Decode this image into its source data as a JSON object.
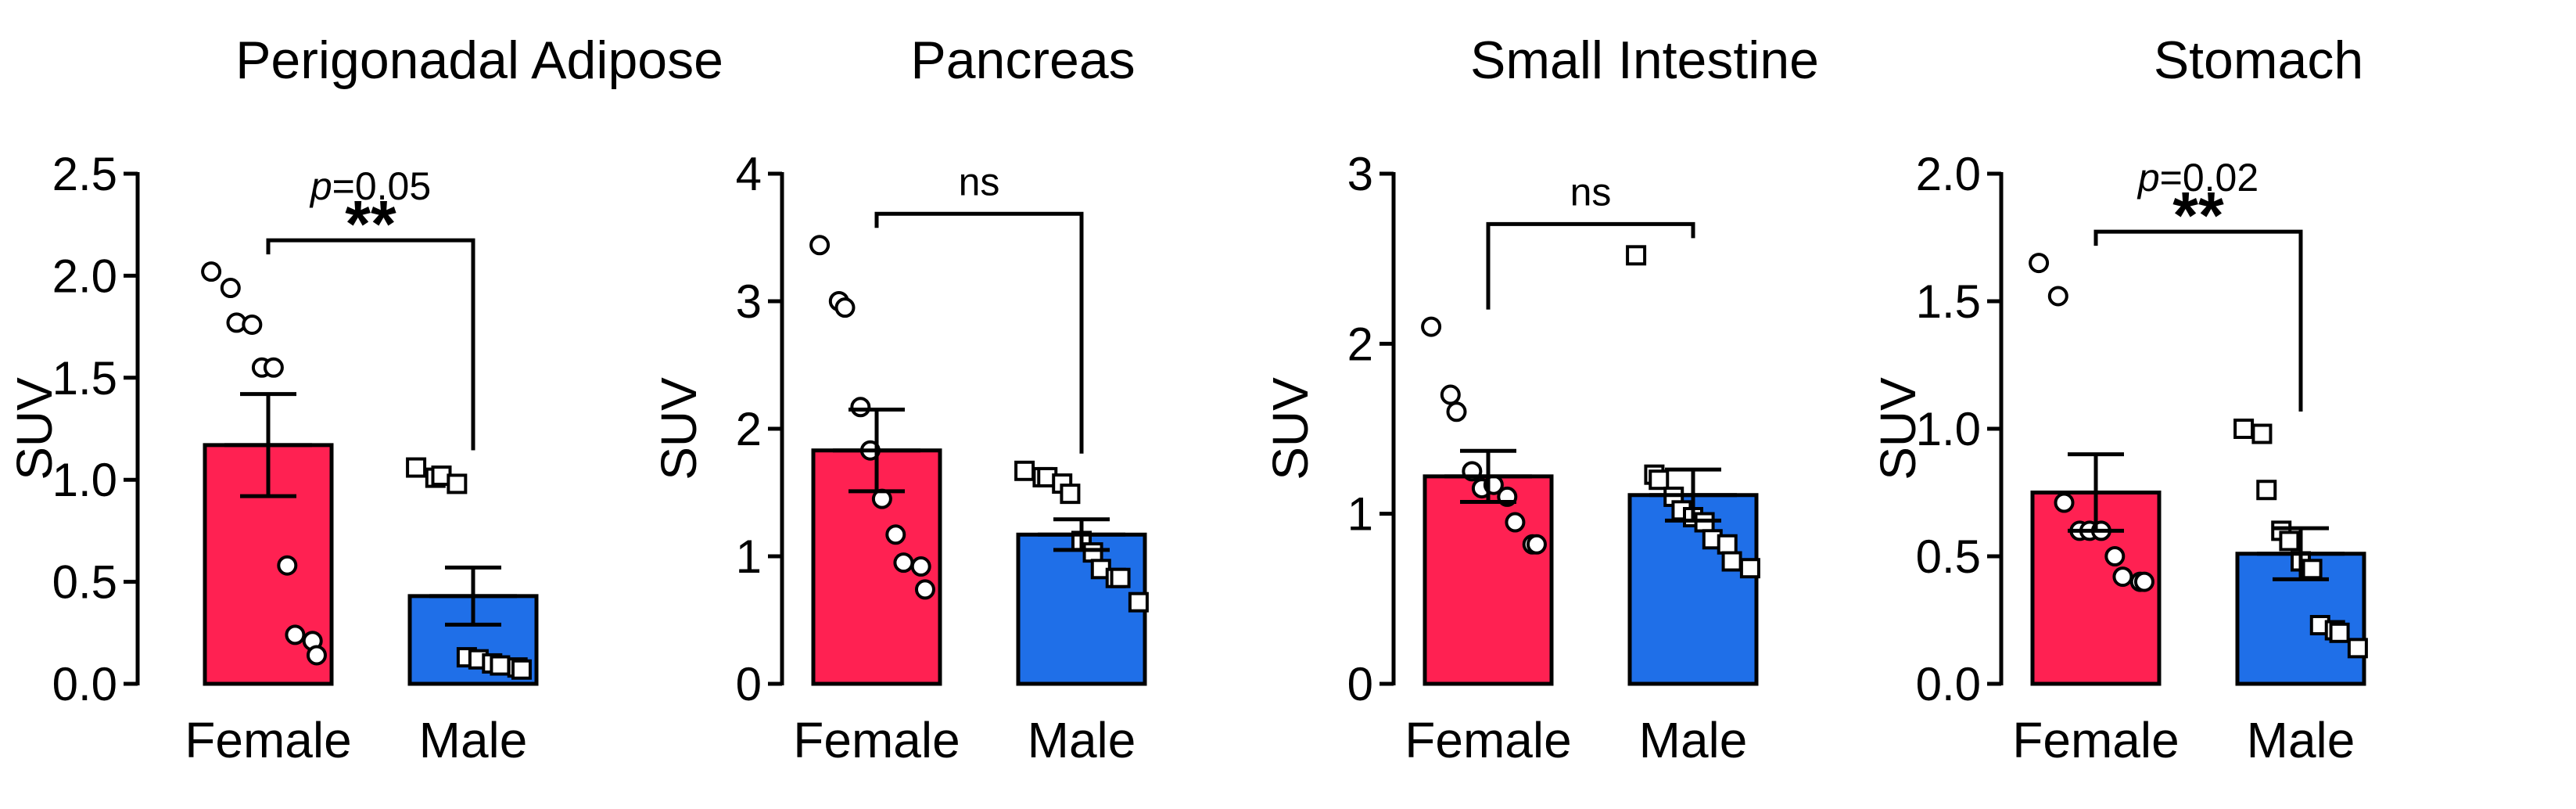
{
  "colors": {
    "female": "#ff2152",
    "male": "#1f6fe8",
    "ink": "#000000"
  },
  "chart_data": [
    {
      "type": "bar",
      "title": "Perigonadal Adipose",
      "ylabel": "SUV",
      "categories": [
        "Female",
        "Male"
      ],
      "ylim": [
        0,
        2.5
      ],
      "yticks": [
        0.0,
        0.5,
        1.0,
        1.5,
        2.0,
        2.5
      ],
      "ytick_labels": [
        "0.0",
        "0.5",
        "1.0",
        "1.5",
        "2.0",
        "2.5"
      ],
      "values": [
        1.17,
        0.43
      ],
      "sem": [
        0.25,
        0.14
      ],
      "points": [
        [
          2.02,
          1.94,
          1.77,
          1.76,
          1.55,
          1.55,
          0.58,
          0.24,
          0.21,
          0.14
        ],
        [
          1.06,
          1.01,
          1.02,
          0.98,
          0.13,
          0.12,
          0.1,
          0.09,
          0.08,
          0.07
        ]
      ],
      "comparison": {
        "label": "**",
        "pvalue_prefix": "p",
        "pvalue_suffix": "=0.05"
      }
    },
    {
      "type": "bar",
      "title": "Pancreas",
      "ylabel": "SUV",
      "categories": [
        "Female",
        "Male"
      ],
      "ylim": [
        0,
        4
      ],
      "yticks": [
        0,
        1,
        2,
        3,
        4
      ],
      "ytick_labels": [
        "0",
        "1",
        "2",
        "3",
        "4"
      ],
      "values": [
        1.83,
        1.17
      ],
      "sem": [
        0.32,
        0.12
      ],
      "points": [
        [
          3.44,
          3.0,
          2.95,
          2.17,
          1.83,
          1.45,
          1.17,
          0.95,
          0.92,
          0.74
        ],
        [
          1.67,
          1.62,
          1.62,
          1.57,
          1.49,
          1.12,
          1.03,
          0.9,
          0.83,
          0.83,
          0.64
        ]
      ],
      "comparison": {
        "label": "ns"
      }
    },
    {
      "type": "bar",
      "title": "Small Intestine",
      "ylabel": "SUV",
      "categories": [
        "Female",
        "Male"
      ],
      "ylim": [
        0,
        3
      ],
      "yticks": [
        0,
        1,
        2,
        3
      ],
      "ytick_labels": [
        "0",
        "1",
        "2",
        "3"
      ],
      "values": [
        1.22,
        1.11
      ],
      "sem": [
        0.15,
        0.15
      ],
      "points": [
        [
          2.1,
          1.7,
          1.6,
          1.25,
          1.15,
          1.17,
          1.1,
          0.95,
          0.82,
          0.82
        ],
        [
          2.52,
          1.23,
          1.2,
          1.1,
          1.02,
          0.98,
          0.95,
          0.85,
          0.82,
          0.72,
          0.68
        ]
      ],
      "comparison": {
        "label": "ns"
      }
    },
    {
      "type": "bar",
      "title": "Stomach",
      "ylabel": "SUV",
      "categories": [
        "Female",
        "Male"
      ],
      "ylim": [
        0,
        2
      ],
      "yticks": [
        0.0,
        0.5,
        1.0,
        1.5,
        2.0
      ],
      "ytick_labels": [
        "0.0",
        "0.5",
        "1.0",
        "1.5",
        "2.0"
      ],
      "values": [
        0.75,
        0.51
      ],
      "sem": [
        0.15,
        0.1
      ],
      "points": [
        [
          1.65,
          1.52,
          0.71,
          0.6,
          0.6,
          0.6,
          0.5,
          0.42,
          0.4,
          0.4
        ],
        [
          1.0,
          0.98,
          0.76,
          0.6,
          0.56,
          0.48,
          0.45,
          0.23,
          0.21,
          0.2,
          0.14
        ]
      ],
      "comparison": {
        "label": "**",
        "pvalue_prefix": "p",
        "pvalue_suffix": "=0.02"
      }
    }
  ]
}
